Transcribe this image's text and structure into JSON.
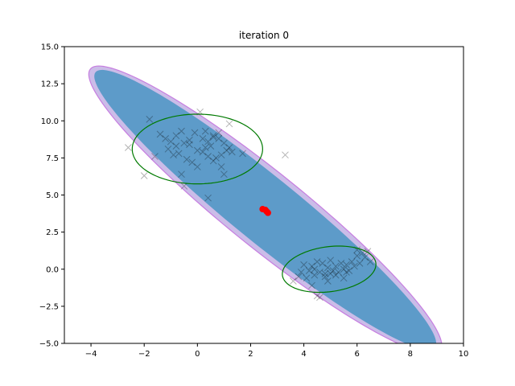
{
  "chart_data": {
    "type": "scatter",
    "title": "iteration 0",
    "xlabel": "",
    "ylabel": "",
    "xlim": [
      -5,
      10
    ],
    "ylim": [
      -5,
      15
    ],
    "xticks": [
      -4,
      -2,
      0,
      2,
      4,
      6,
      8,
      10
    ],
    "yticks": [
      -5.0,
      -2.5,
      0.0,
      2.5,
      5.0,
      7.5,
      10.0,
      12.5,
      15.0
    ],
    "xtick_labels": [
      "−4",
      "−2",
      "0",
      "2",
      "4",
      "6",
      "8",
      "10"
    ],
    "ytick_labels": [
      "−5.0",
      "−2.5",
      "0.0",
      "2.5",
      "5.0",
      "7.5",
      "10.0",
      "12.5",
      "15.0"
    ],
    "colors": {
      "axes_edge": "#000000",
      "filled_ellipse": "#5d9bc9",
      "outer_ellipse_edge": "#c77ee0",
      "outer_ellipse_fill": "#b9a6e0",
      "cluster_ellipse": "#007a00",
      "points": "#000000",
      "centers": "#ff0000"
    },
    "series": [
      {
        "name": "cluster-upper-left",
        "marker": "x",
        "points": [
          [
            -2.6,
            8.2
          ],
          [
            -2.0,
            6.3
          ],
          [
            -1.8,
            10.1
          ],
          [
            -1.6,
            7.6
          ],
          [
            -1.4,
            9.1
          ],
          [
            -1.2,
            8.8
          ],
          [
            -1.1,
            8.1
          ],
          [
            -1.0,
            8.6
          ],
          [
            -0.9,
            7.7
          ],
          [
            -0.8,
            9.0
          ],
          [
            -0.7,
            7.8
          ],
          [
            -0.6,
            9.3
          ],
          [
            -0.6,
            6.4
          ],
          [
            -0.5,
            8.5
          ],
          [
            -0.5,
            5.6
          ],
          [
            -0.4,
            7.4
          ],
          [
            -0.3,
            8.7
          ],
          [
            -0.2,
            7.2
          ],
          [
            -0.1,
            9.2
          ],
          [
            0.0,
            6.9
          ],
          [
            0.0,
            8.0
          ],
          [
            0.1,
            10.6
          ],
          [
            0.2,
            7.9
          ],
          [
            0.3,
            8.2
          ],
          [
            0.3,
            9.3
          ],
          [
            0.4,
            8.6
          ],
          [
            0.4,
            7.6
          ],
          [
            0.4,
            4.8
          ],
          [
            0.5,
            8.3
          ],
          [
            0.6,
            7.3
          ],
          [
            0.6,
            9.0
          ],
          [
            0.7,
            7.5
          ],
          [
            0.8,
            8.8
          ],
          [
            0.8,
            9.2
          ],
          [
            0.9,
            7.7
          ],
          [
            0.9,
            6.9
          ],
          [
            1.0,
            8.5
          ],
          [
            1.0,
            6.4
          ],
          [
            1.1,
            8.0
          ],
          [
            1.2,
            9.8
          ],
          [
            1.2,
            8.2
          ],
          [
            1.3,
            7.9
          ],
          [
            1.7,
            7.8
          ],
          [
            3.3,
            7.7
          ],
          [
            -0.3,
            8.4
          ],
          [
            0.2,
            8.8
          ],
          [
            0.6,
            8.9
          ],
          [
            -0.8,
            8.3
          ]
        ]
      },
      {
        "name": "cluster-lower-right",
        "marker": "x",
        "points": [
          [
            3.6,
            -0.8
          ],
          [
            3.8,
            -0.5
          ],
          [
            3.9,
            -0.2
          ],
          [
            4.0,
            0.3
          ],
          [
            4.1,
            -0.6
          ],
          [
            4.2,
            -0.1
          ],
          [
            4.3,
            0.2
          ],
          [
            4.3,
            -1.1
          ],
          [
            4.4,
            -0.4
          ],
          [
            4.5,
            0.5
          ],
          [
            4.5,
            -1.8
          ],
          [
            4.6,
            -0.2
          ],
          [
            4.6,
            -1.9
          ],
          [
            4.7,
            0.4
          ],
          [
            4.8,
            -0.5
          ],
          [
            4.9,
            0.1
          ],
          [
            4.9,
            -0.8
          ],
          [
            5.0,
            -0.3
          ],
          [
            5.0,
            0.6
          ],
          [
            5.1,
            -0.1
          ],
          [
            5.2,
            -0.4
          ],
          [
            5.2,
            0.2
          ],
          [
            5.3,
            -0.2
          ],
          [
            5.4,
            0.4
          ],
          [
            5.5,
            0.0
          ],
          [
            5.5,
            -0.6
          ],
          [
            5.6,
            0.3
          ],
          [
            5.7,
            -0.1
          ],
          [
            5.8,
            0.5
          ],
          [
            5.9,
            0.2
          ],
          [
            6.0,
            1.3
          ],
          [
            6.0,
            0.9
          ],
          [
            6.1,
            0.4
          ],
          [
            6.2,
            1.1
          ],
          [
            6.3,
            0.8
          ],
          [
            6.4,
            1.2
          ],
          [
            6.5,
            0.5
          ],
          [
            4.8,
            -0.3
          ],
          [
            5.6,
            -0.2
          ],
          [
            4.4,
            0.0
          ]
        ]
      },
      {
        "name": "centers",
        "marker": "o",
        "points": [
          [
            2.45,
            4.05
          ],
          [
            2.55,
            4.0
          ],
          [
            2.6,
            3.9
          ],
          [
            2.65,
            3.8
          ]
        ]
      }
    ],
    "ellipses": [
      {
        "name": "outer-ellipse",
        "center": [
          2.55,
          4.0
        ],
        "semi_axes": [
          11.6,
          1.85
        ],
        "angle_deg": -56.2
      },
      {
        "name": "filled-ellipse",
        "center": [
          2.55,
          4.0
        ],
        "semi_axes": [
          11.3,
          1.6
        ],
        "angle_deg": -56.2
      },
      {
        "name": "cluster-ellipse-upper",
        "center": [
          0.0,
          8.1
        ],
        "semi_axes": [
          2.45,
          2.35
        ],
        "angle_deg": 0
      },
      {
        "name": "cluster-ellipse-lower",
        "center": [
          4.95,
          0.0
        ],
        "semi_axes": [
          1.85,
          1.45
        ],
        "angle_deg": 30
      }
    ]
  }
}
